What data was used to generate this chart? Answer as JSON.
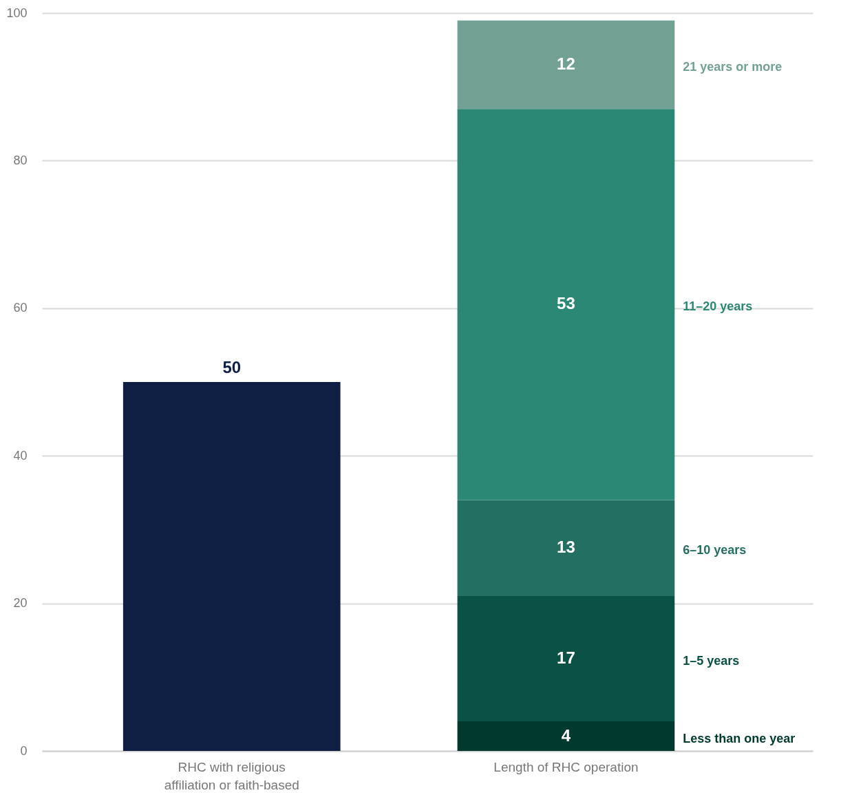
{
  "chart_data": {
    "type": "bar",
    "stacked": true,
    "categories": [
      "RHC with religious affiliation or faith-based",
      "Length of RHC operation"
    ],
    "series": [
      {
        "color": "#0f1f43",
        "values": [
          50,
          null
        ]
      },
      {
        "name": "Less than one year",
        "color": "#003a2f",
        "values": [
          null,
          4
        ]
      },
      {
        "name": "1–5 years",
        "color": "#0a5146",
        "values": [
          null,
          17
        ]
      },
      {
        "name": "6–10 years",
        "color": "#236f62",
        "values": [
          null,
          13
        ]
      },
      {
        "name": "11–20 years",
        "color": "#2b8875",
        "values": [
          null,
          53
        ]
      },
      {
        "name": "21 years or more",
        "color": "#72a095",
        "values": [
          null,
          12
        ]
      }
    ],
    "ylim": [
      0,
      100
    ],
    "yticks": [
      0,
      20,
      40,
      60,
      80,
      100
    ],
    "grid": "y",
    "legend": false,
    "data_labels": true
  }
}
